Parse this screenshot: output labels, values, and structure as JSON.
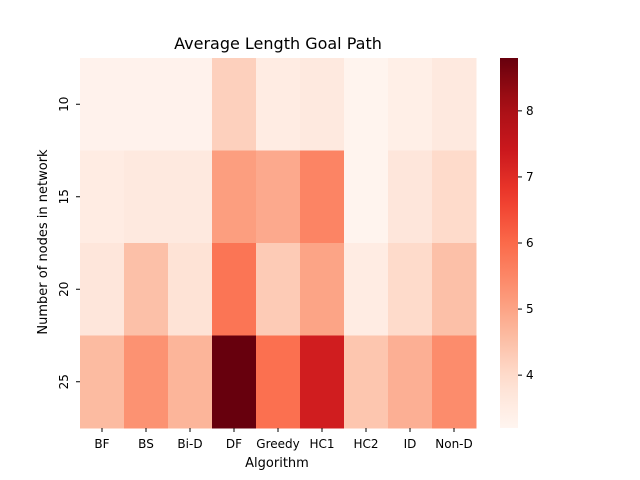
{
  "chart_data": {
    "type": "heatmap",
    "title": "Average Length Goal Path",
    "xlabel": "Algorithm",
    "ylabel": "Number of nodes in network",
    "x": [
      "BF",
      "BS",
      "Bi-D",
      "DF",
      "Greedy",
      "HC1",
      "HC2",
      "ID",
      "Non-D"
    ],
    "y": [
      "10",
      "15",
      "20",
      "25"
    ],
    "values": [
      [
        3.3,
        3.3,
        3.3,
        4.2,
        3.5,
        3.6,
        3.25,
        3.4,
        3.6
      ],
      [
        3.5,
        3.6,
        3.6,
        5.1,
        4.9,
        5.55,
        3.25,
        3.7,
        4.0
      ],
      [
        3.7,
        4.5,
        3.8,
        5.8,
        4.3,
        5.0,
        3.5,
        4.0,
        4.5
      ],
      [
        4.6,
        5.3,
        4.7,
        8.8,
        5.9,
        7.3,
        4.4,
        4.8,
        5.4
      ]
    ],
    "colorbar": {
      "min": 3.2,
      "max": 8.8,
      "ticks": [
        4,
        5,
        6,
        7,
        8
      ],
      "colormap": "Reds"
    },
    "grid": false,
    "legend": "colorbar-right"
  }
}
